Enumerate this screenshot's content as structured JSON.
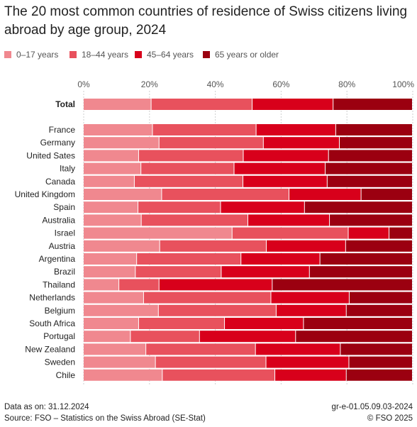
{
  "title": "The 20 most common countries of residence of Swiss citizens living abroad by age group, 2024",
  "legend": [
    {
      "label": "0–17 years",
      "color": "#f0888f"
    },
    {
      "label": "18–44 years",
      "color": "#e8515d"
    },
    {
      "label": "45–64 years",
      "color": "#d8001b"
    },
    {
      "label": "65 years or older",
      "color": "#9b0010"
    }
  ],
  "footer": {
    "data_as_on": "Data as on: 31.12.2024",
    "source": "Source: FSO – Statistics on the Swiss Abroad (SE-Stat)",
    "code": "gr-e-01.05.09.03-2024",
    "copyright": "© FSO 2025"
  },
  "chart_data": {
    "type": "bar",
    "orientation": "horizontal",
    "stacked": true,
    "xlim": [
      0,
      100
    ],
    "xticks": [
      "0%",
      "20%",
      "40%",
      "60%",
      "80%",
      "100%"
    ],
    "grid": true,
    "legend_position": "top",
    "total": {
      "label": "Total",
      "values": [
        20.6,
        30.7,
        24.6,
        24.1
      ]
    },
    "categories": [
      "France",
      "Germany",
      "United Sates",
      "Italy",
      "Canada",
      "United Kingdom",
      "Spain",
      "Australia",
      "Israel",
      "Austria",
      "Argentina",
      "Brazil",
      "Thailand",
      "Netherlands",
      "Belgium",
      "South Africa",
      "Portugal",
      "New Zealand",
      "Sweden",
      "Chile"
    ],
    "series": [
      {
        "name": "0–17 years",
        "values": [
          21.0,
          23.0,
          16.8,
          17.5,
          15.5,
          23.8,
          16.6,
          17.6,
          45.2,
          23.2,
          16.2,
          15.8,
          10.8,
          18.3,
          22.8,
          16.8,
          14.3,
          19.0,
          21.9,
          24.0
        ]
      },
      {
        "name": "18–44 years",
        "values": [
          31.5,
          31.7,
          31.8,
          28.3,
          33.0,
          38.7,
          25.1,
          32.4,
          35.3,
          32.4,
          31.7,
          26.1,
          12.2,
          38.7,
          35.8,
          26.1,
          21.0,
          33.3,
          33.6,
          34.2
        ]
      },
      {
        "name": "45–64 years",
        "values": [
          24.2,
          23.1,
          25.9,
          27.7,
          25.6,
          21.9,
          25.5,
          24.8,
          12.4,
          24.1,
          24.0,
          26.8,
          34.4,
          23.8,
          21.3,
          24.0,
          29.2,
          25.8,
          25.2,
          21.7
        ]
      },
      {
        "name": "65 years or older",
        "values": [
          23.3,
          22.2,
          25.5,
          26.5,
          25.9,
          15.6,
          32.8,
          25.2,
          7.1,
          20.3,
          28.1,
          31.3,
          42.6,
          19.2,
          20.1,
          33.1,
          35.5,
          21.9,
          19.3,
          20.1
        ]
      }
    ]
  }
}
